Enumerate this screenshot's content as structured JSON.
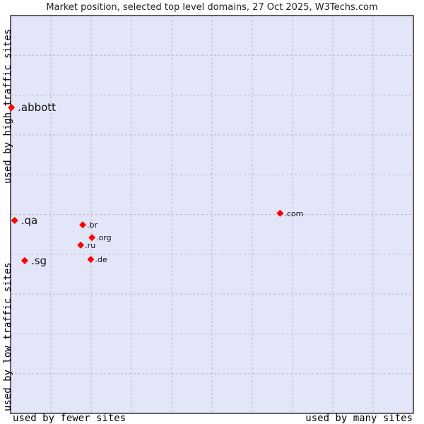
{
  "chart_data": {
    "type": "scatter",
    "title": "Market position, selected top level domains, 27 Oct 2025, W3Techs.com",
    "xlabel_left": "used by fewer sites",
    "xlabel_right": "used by many sites",
    "ylabel_bottom": "used by low traffic sites",
    "ylabel_top": "used by high traffic sites",
    "xlim": [
      0,
      100
    ],
    "ylim": [
      0,
      100
    ],
    "grid": true,
    "background": "#e3e5f8",
    "point_color": "#ff0000",
    "points": [
      {
        "label": ".abbott",
        "x": 0.2,
        "y": 76.9,
        "highlight": true
      },
      {
        "label": ".qa",
        "x": 1,
        "y": 48.5,
        "highlight": true
      },
      {
        "label": ".sg",
        "x": 3.5,
        "y": 38.4,
        "highlight": true
      },
      {
        "label": ".br",
        "x": 17.9,
        "y": 47.4,
        "highlight": false
      },
      {
        "label": ".org",
        "x": 20.2,
        "y": 44.2,
        "highlight": false
      },
      {
        "label": ".ru",
        "x": 17.4,
        "y": 42.3,
        "highlight": false
      },
      {
        "label": ".de",
        "x": 19.9,
        "y": 38.7,
        "highlight": false
      },
      {
        "label": ".com",
        "x": 66.9,
        "y": 50.3,
        "highlight": false
      }
    ]
  }
}
